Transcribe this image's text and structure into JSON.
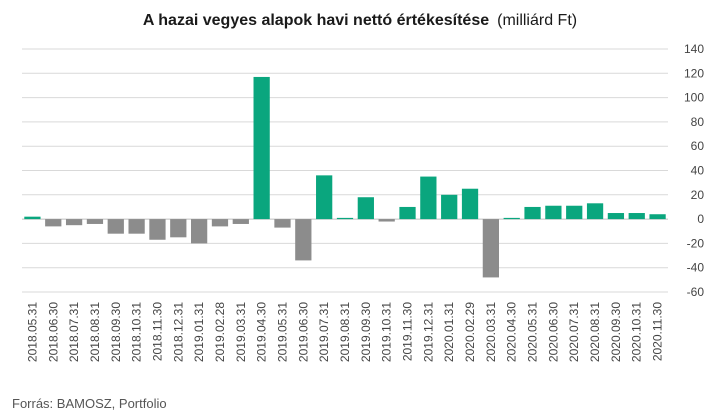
{
  "title": "A hazai vegyes alapok havi nettó értékesítése",
  "title_unit": "(milliárd Ft)",
  "source": "Forrás: BAMOSZ, Portfolio",
  "chart_data": {
    "type": "bar",
    "title": "A hazai vegyes alapok havi nettó értékesítése",
    "unit": "(milliárd Ft)",
    "categories": [
      "2018.05.31",
      "2018.06.30",
      "2018.07.31",
      "2018.08.31",
      "2018.09.30",
      "2018.10.31",
      "2018.11.30",
      "2018.12.31",
      "2019.01.31",
      "2019.02.28",
      "2019.03.31",
      "2019.04.30",
      "2019.05.31",
      "2019.06.30",
      "2019.07.31",
      "2019.08.31",
      "2019.09.30",
      "2019.10.31",
      "2019.11.30",
      "2019.12.31",
      "2020.01.31",
      "2020.02.29",
      "2020.03.31",
      "2020.04.30",
      "2020.05.31",
      "2020.06.30",
      "2020.07.31",
      "2020.08.31",
      "2020.09.30",
      "2020.10.31",
      "2020.11.30"
    ],
    "values": [
      2,
      -6,
      -5,
      -4,
      -12,
      -12,
      -17,
      -15,
      -20,
      -6,
      -4,
      117,
      -7,
      -34,
      36,
      1,
      18,
      -2,
      10,
      35,
      20,
      25,
      -48,
      1,
      10,
      11,
      11,
      13,
      5,
      5,
      4
    ],
    "ylim": [
      -60,
      140
    ],
    "yticks": [
      -60,
      -40,
      -20,
      0,
      20,
      40,
      60,
      80,
      100,
      120,
      140
    ],
    "y_axis_position": "right",
    "grid": true,
    "colors": {
      "positive": "#0aa67e",
      "negative": "#8c8c8c",
      "grid": "#d9d9d9",
      "zero_line": "#bfbfbf"
    }
  }
}
